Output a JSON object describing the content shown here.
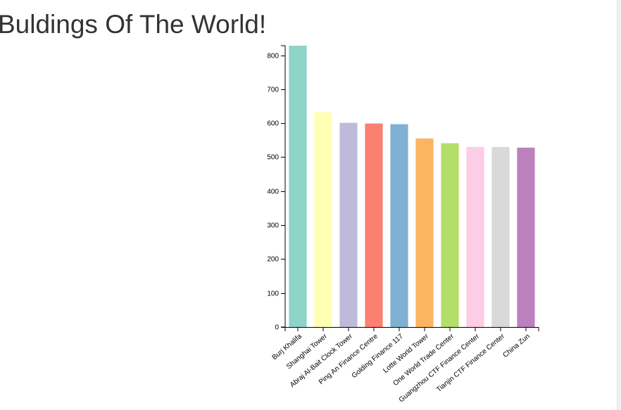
{
  "page": {
    "title": "Buldings Of The World!"
  },
  "chart_data": {
    "type": "bar",
    "title": "",
    "xlabel": "",
    "ylabel": "",
    "ylim": [
      0,
      828
    ],
    "yticks": [
      0,
      100,
      200,
      300,
      400,
      500,
      600,
      700,
      800
    ],
    "grid": false,
    "categories": [
      "Burj Khalifa",
      "Shanghai Tower",
      "Abraj Al-Bait Clock Tower",
      "Ping An Finance Centre",
      "Golding Finance 117",
      "Lotte World Tower",
      "One World Trade Center",
      "Guangzhou CTF Finance Center",
      "Tianjin CTF Finance Center",
      "China Zun"
    ],
    "values": [
      828,
      632,
      601,
      599,
      597,
      555,
      541,
      530,
      530,
      528
    ],
    "colors": [
      "#8dd3c7",
      "#ffffb3",
      "#bebada",
      "#fb8072",
      "#80b1d3",
      "#fdb462",
      "#b3de69",
      "#fccde5",
      "#d9d9d9",
      "#bc80bd"
    ]
  }
}
